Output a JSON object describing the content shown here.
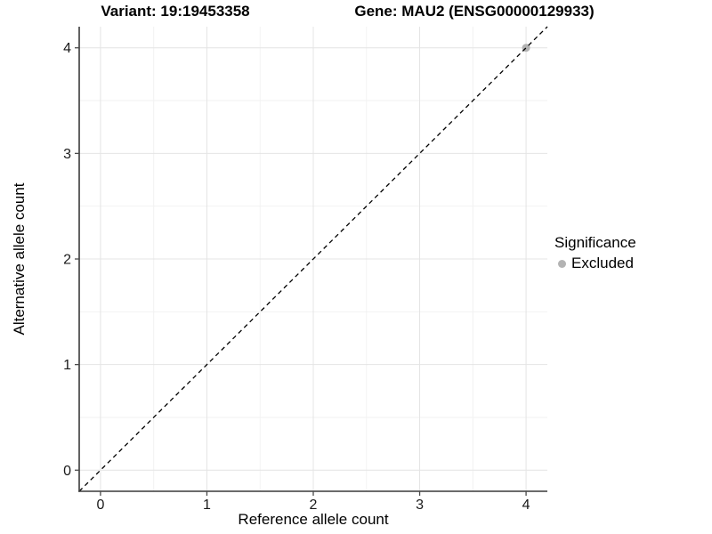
{
  "titles": {
    "variant": "Variant: 19:19453358",
    "gene": "Gene: MAU2 (ENSG00000129933)"
  },
  "legend": {
    "title": "Significance",
    "items": [
      {
        "label": "Excluded",
        "color": "#b3b3b3",
        "marker": "circle-icon"
      }
    ]
  },
  "chart_data": {
    "type": "scatter",
    "title_left": "Variant: 19:19453358",
    "title_right": "Gene: MAU2 (ENSG00000129933)",
    "xlabel": "Reference allele count",
    "ylabel": "Alternative allele count",
    "xlim": [
      -0.2,
      4.2
    ],
    "ylim": [
      -0.2,
      4.2
    ],
    "x_ticks": [
      0,
      1,
      2,
      3,
      4
    ],
    "y_ticks": [
      0,
      1,
      2,
      3,
      4
    ],
    "x_minor_ticks": [
      0.5,
      1.5,
      2.5,
      3.5
    ],
    "y_minor_ticks": [
      0.5,
      1.5,
      2.5,
      3.5
    ],
    "grid": true,
    "legend_position": "right",
    "series": [
      {
        "name": "Excluded",
        "color": "#b3b3b3",
        "points": [
          {
            "x": 4,
            "y": 4
          }
        ]
      }
    ],
    "reference_line": {
      "kind": "identity",
      "from": [
        -0.2,
        -0.2
      ],
      "to": [
        4.2,
        4.2
      ],
      "style": "dashed",
      "color": "#000000"
    },
    "colors": {
      "grid_major": "#e4e4e4",
      "grid_minor": "#f2f2f2",
      "axis": "#3a3a3a",
      "tick": "#4a4a4a",
      "text": "#1a1a1a",
      "background": "#ffffff"
    }
  }
}
